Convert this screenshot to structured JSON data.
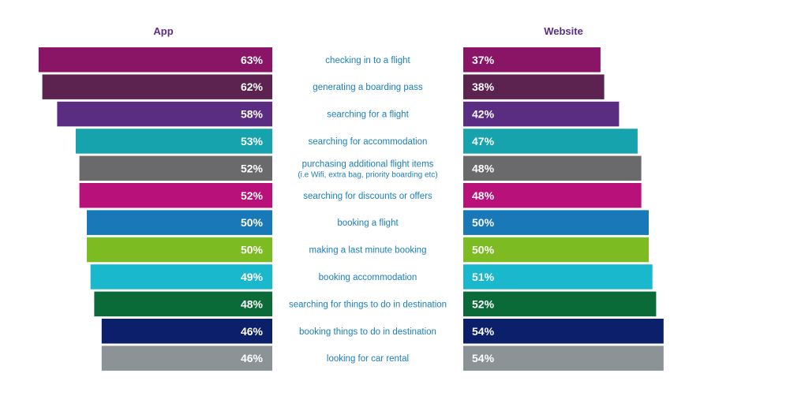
{
  "chart_data": {
    "type": "bar",
    "title": "",
    "xlabel": "",
    "ylabel": "",
    "value_format": "percent",
    "categories": [
      "checking in to a flight",
      "generating a boarding pass",
      "searching for a flight",
      "searching for accommodation",
      "purchasing additional flight items\n(i.e  Wifi, extra bag, priority boarding etc)",
      "searching for discounts or offers",
      "booking a flight",
      "making a last minute booking",
      "booking accommodation",
      "searching for things to do in destination",
      "booking things to do in destination",
      "looking for car rental"
    ],
    "series": [
      {
        "name": "App",
        "values": [
          63,
          62,
          58,
          53,
          52,
          52,
          50,
          50,
          49,
          48,
          46,
          46
        ]
      },
      {
        "name": "Website",
        "values": [
          37,
          38,
          42,
          47,
          48,
          48,
          50,
          50,
          51,
          52,
          54,
          54
        ]
      }
    ],
    "row_colors": [
      "#8a1566",
      "#5d2350",
      "#5a2d82",
      "#16a3ae",
      "#6a6a6c",
      "#b8117a",
      "#1878b8",
      "#7dbb22",
      "#1ab8cc",
      "#0a6a38",
      "#0c1f6b",
      "#8b9396"
    ],
    "label_color": "#1a7fb8",
    "header_color": "#5a2d82",
    "value_text_color": "#ffffff"
  }
}
